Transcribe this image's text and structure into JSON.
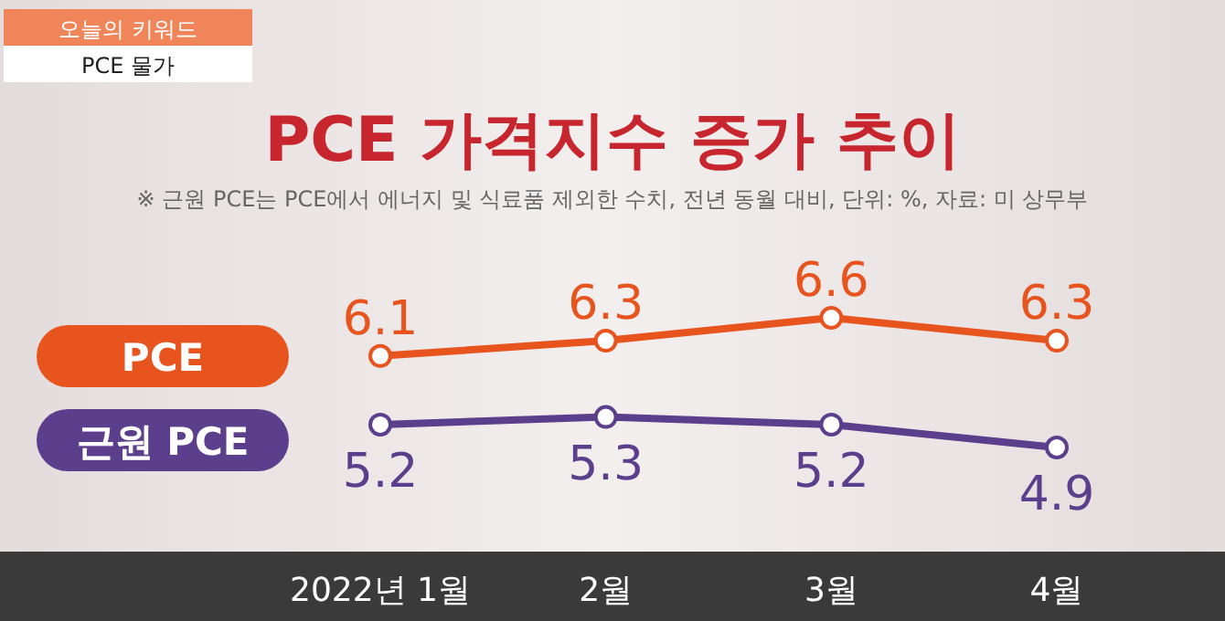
{
  "chart_data": {
    "type": "line",
    "title": "PCE 가격지수 증가 추이",
    "subtitle": "※ 근원 PCE는 PCE에서 에너지 및 식료품 제외한 수치, 전년 동월 대비, 단위: %, 자료: 미 상무부",
    "annotations": [
      "오늘의 키워드",
      "PCE 물가"
    ],
    "categories": [
      "2022년 1월",
      "2월",
      "3월",
      "4월"
    ],
    "series": [
      {
        "name": "PCE",
        "color": "#e8541e",
        "values": [
          6.1,
          6.3,
          6.6,
          6.3
        ]
      },
      {
        "name": "근원 PCE",
        "color": "#5b3f8c",
        "values": [
          5.2,
          5.3,
          5.2,
          4.9
        ]
      }
    ],
    "data_labels": true,
    "legend": "left",
    "marker": "circle"
  }
}
